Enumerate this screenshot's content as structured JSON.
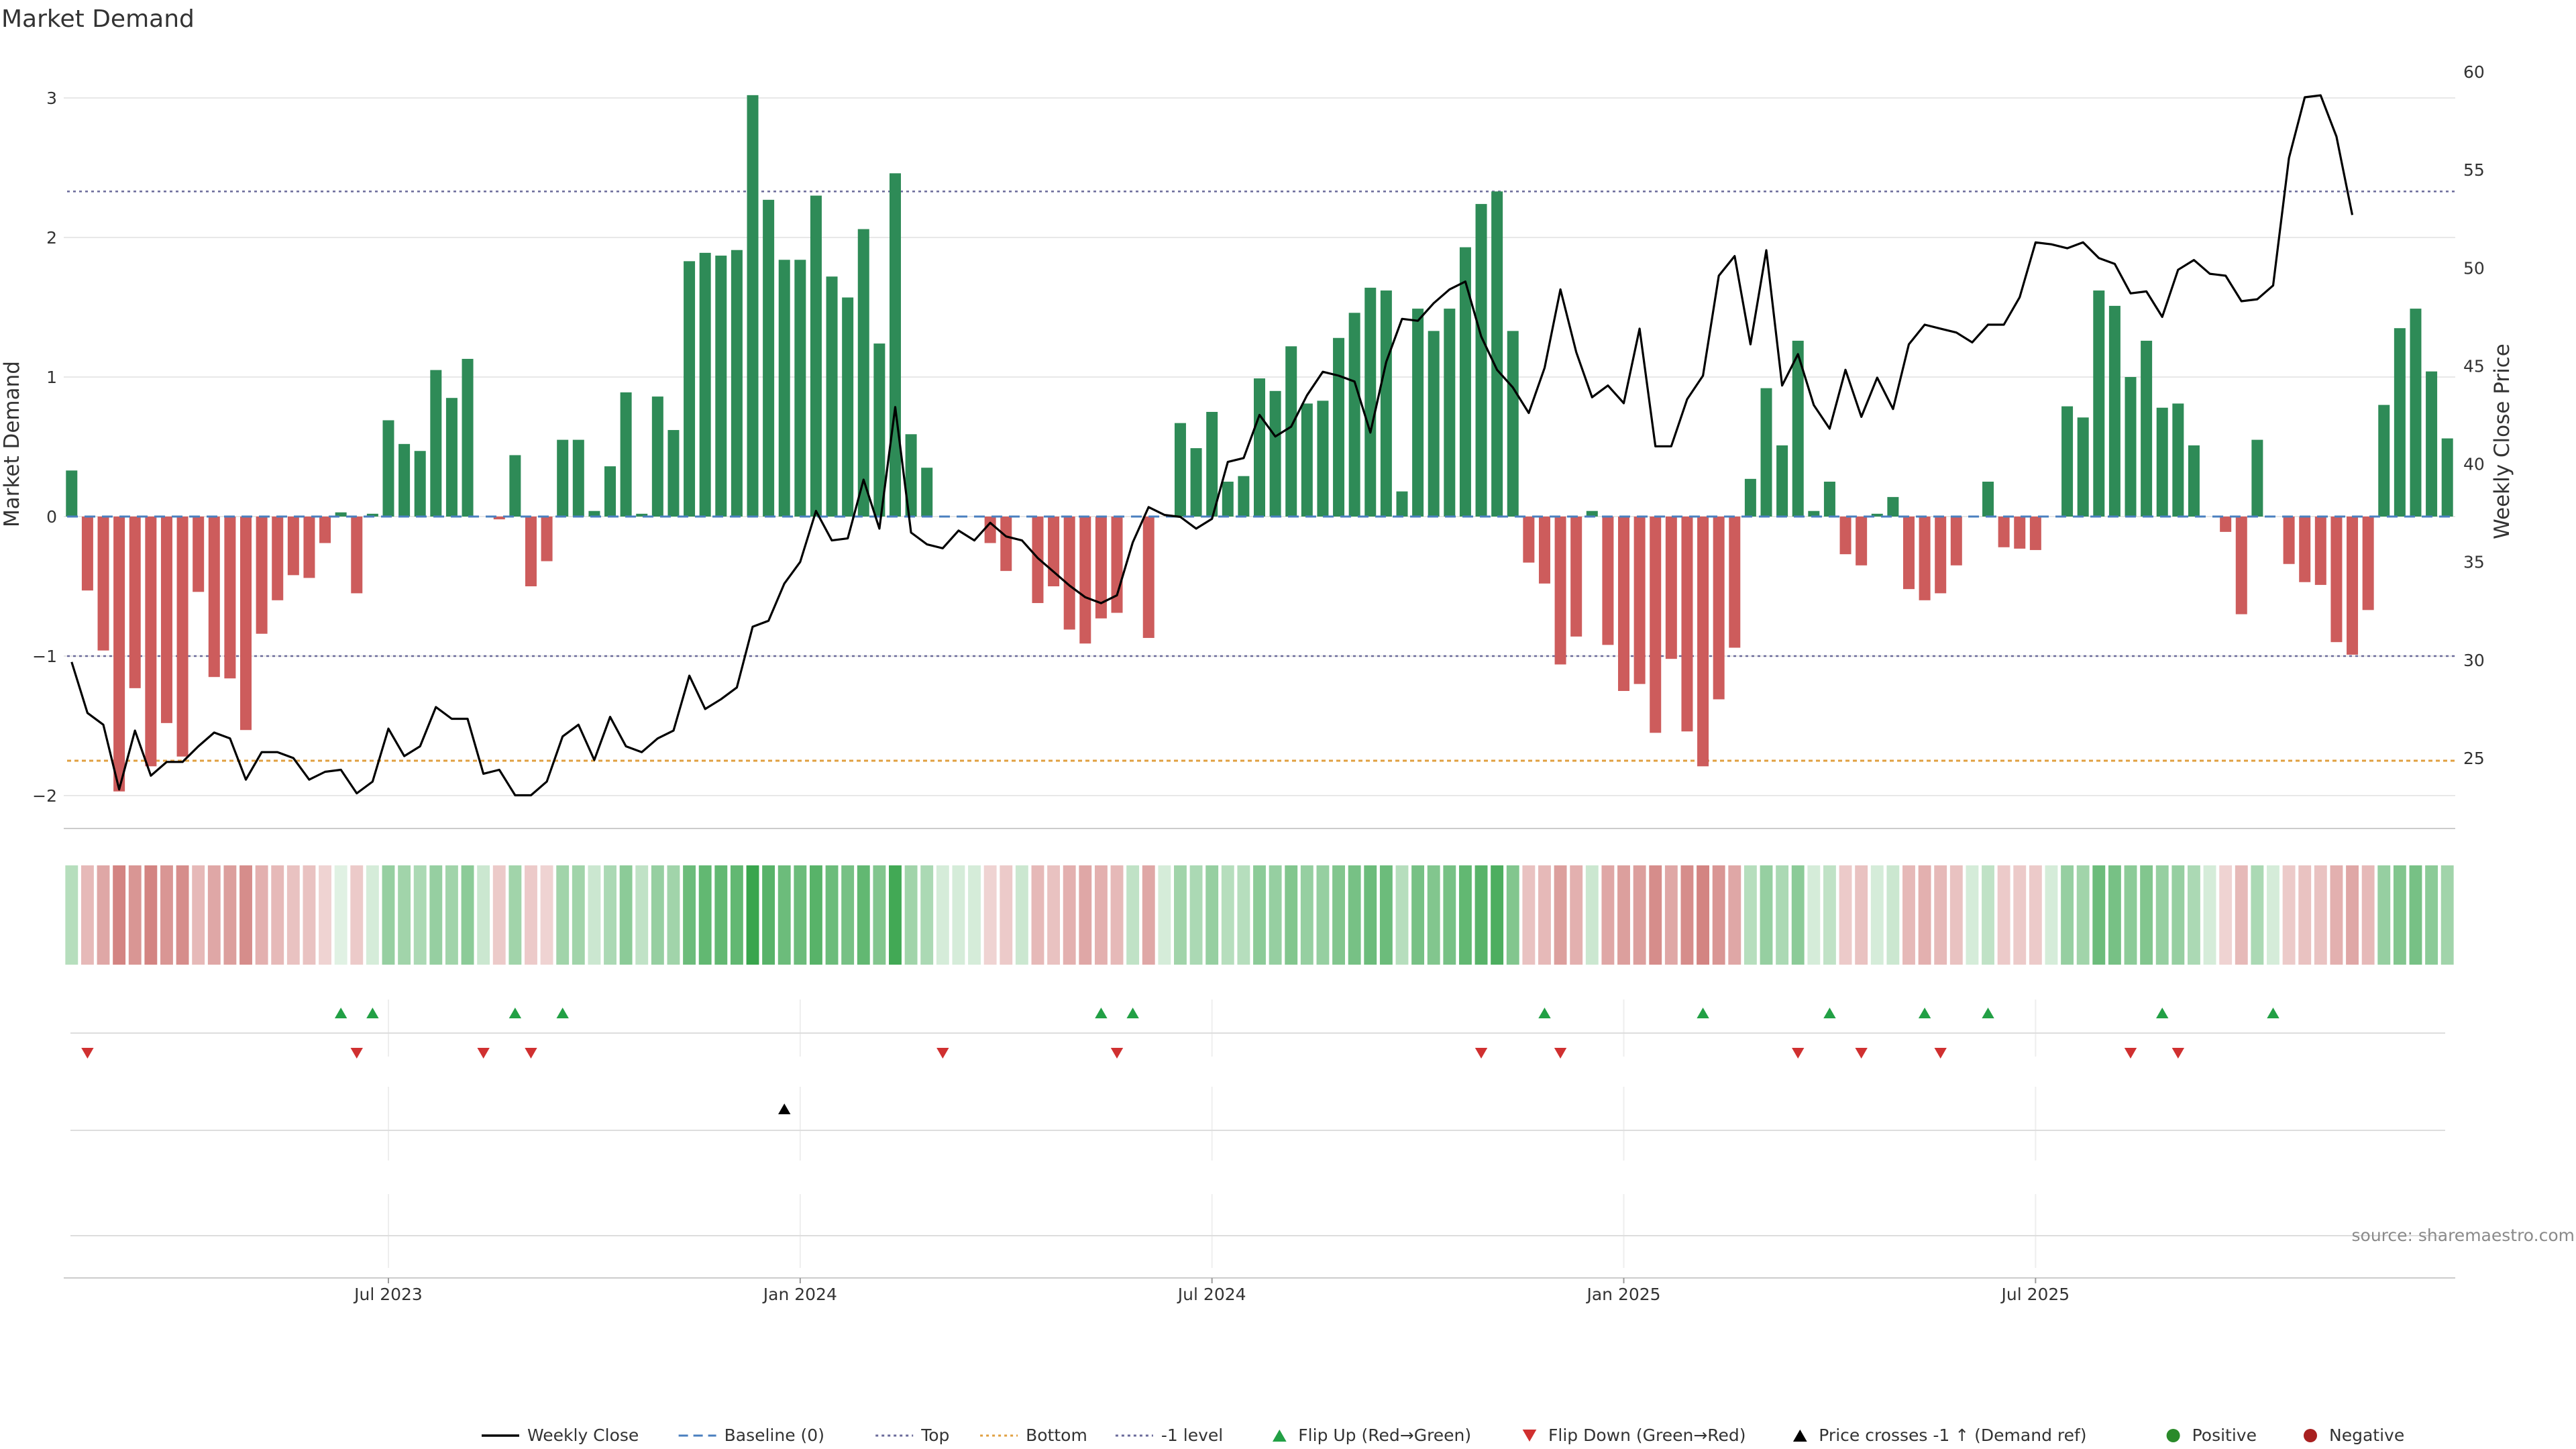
{
  "chart_data": {
    "type": "bar",
    "title": "Market Demand",
    "ylabel_left": "Market Demand",
    "ylabel_right": "Weekly Close Price",
    "ylim_left": [
      -2.2,
      3.1
    ],
    "ylim_right": [
      22,
      61
    ],
    "y_ticks_left": [
      -2,
      -1,
      0,
      1,
      2,
      3
    ],
    "y_ticks_right": [
      25,
      30,
      35,
      40,
      45,
      50,
      55,
      60
    ],
    "x_tick_labels": [
      "Jul 2023",
      "Jan 2024",
      "Jul 2024",
      "Jan 2025",
      "Jul 2025"
    ],
    "x_tick_weeks": [
      20,
      46,
      72,
      98,
      124
    ],
    "reference_lines": {
      "baseline": 0,
      "top": 2.33,
      "minus_one_level": -1,
      "bottom": -1.75
    },
    "demand": [
      0.33,
      -0.53,
      -0.96,
      -1.97,
      -1.23,
      -1.79,
      -1.48,
      -1.72,
      -0.54,
      -1.15,
      -1.16,
      -1.53,
      -0.84,
      -0.6,
      -0.42,
      -0.44,
      -0.19,
      0.03,
      -0.55,
      0.02,
      0.69,
      0.52,
      0.47,
      1.05,
      0.85,
      1.13,
      0.0,
      -0.02,
      0.44,
      -0.5,
      -0.32,
      0.55,
      0.55,
      0.04,
      0.36,
      0.89,
      0.02,
      0.86,
      0.62,
      1.83,
      1.89,
      1.87,
      1.91,
      3.02,
      2.27,
      1.84,
      1.84,
      2.3,
      1.72,
      1.57,
      2.06,
      1.24,
      2.46,
      0.59,
      0.35,
      0.0,
      0.0,
      0.0,
      -0.19,
      -0.39,
      0.0,
      -0.62,
      -0.5,
      -0.81,
      -0.91,
      -0.73,
      -0.69,
      0.0,
      -0.87,
      0.0,
      0.67,
      0.49,
      0.75,
      0.25,
      0.29,
      0.99,
      0.9,
      1.22,
      0.81,
      0.83,
      1.28,
      1.46,
      1.64,
      1.62,
      0.18,
      1.49,
      1.33,
      1.49,
      1.93,
      2.24,
      2.33,
      1.33,
      -0.33,
      -0.48,
      -1.06,
      -0.86,
      0.04,
      -0.92,
      -1.25,
      -1.2,
      -1.55,
      -1.02,
      -1.54,
      -1.79,
      -1.31,
      -0.94,
      0.27,
      0.92,
      0.51,
      1.26,
      0.04,
      0.25,
      -0.27,
      -0.35,
      0.02,
      0.14,
      -0.52,
      -0.6,
      -0.55,
      -0.35,
      0.0,
      0.25,
      -0.22,
      -0.23,
      -0.24,
      0.0,
      0.79,
      0.71,
      1.62,
      1.51,
      1.0,
      1.26,
      0.78,
      0.81,
      0.51,
      0.0,
      -0.11,
      -0.7,
      0.55,
      0.0,
      -0.34,
      -0.47,
      -0.49,
      -0.9,
      -0.99,
      -0.67,
      0.8,
      1.35,
      1.49,
      1.04,
      0.56
    ],
    "weekly_close": [
      29.9,
      27.3,
      26.7,
      23.4,
      26.4,
      24.1,
      24.8,
      24.8,
      25.6,
      26.3,
      26.0,
      23.9,
      25.3,
      25.3,
      25.0,
      23.9,
      24.3,
      24.4,
      23.2,
      23.8,
      26.5,
      25.1,
      25.6,
      27.6,
      27.0,
      27.0,
      24.2,
      24.4,
      23.1,
      23.1,
      23.8,
      26.1,
      26.7,
      24.9,
      27.1,
      25.6,
      25.3,
      26.0,
      26.4,
      29.2,
      27.5,
      28.0,
      28.6,
      31.7,
      32.0,
      33.9,
      35.0,
      37.6,
      36.1,
      36.2,
      39.2,
      36.7,
      42.9,
      36.5,
      35.9,
      35.7,
      36.6,
      36.1,
      37.0,
      36.3,
      36.1,
      35.2,
      34.5,
      33.8,
      33.2,
      32.9,
      33.3,
      36.0,
      37.8,
      37.4,
      37.3,
      36.7,
      37.2,
      40.1,
      40.3,
      42.5,
      41.4,
      41.9,
      43.5,
      44.7,
      44.5,
      44.2,
      41.6,
      45.2,
      47.4,
      47.3,
      48.2,
      48.9,
      49.3,
      46.5,
      44.8,
      43.9,
      42.6,
      44.9,
      48.9,
      45.7,
      43.4,
      44.0,
      43.1,
      46.9,
      40.9,
      40.9,
      43.3,
      44.5,
      49.6,
      50.6,
      46.1,
      50.9,
      44.0,
      45.6,
      43.0,
      41.8,
      44.8,
      42.4,
      44.4,
      42.8,
      46.1,
      47.1,
      46.9,
      46.7,
      46.2,
      47.1,
      47.1,
      48.5,
      51.3,
      51.2,
      51.0,
      51.3,
      50.5,
      50.2,
      48.7,
      48.8,
      47.5,
      49.9,
      50.4,
      49.7,
      49.6,
      48.3,
      48.4,
      49.1,
      55.6,
      58.7,
      58.8,
      56.7,
      52.7
    ],
    "strip_intensity": [
      0.35,
      0.4,
      0.5,
      0.7,
      0.6,
      0.7,
      0.6,
      0.65,
      0.4,
      0.5,
      0.55,
      0.65,
      0.45,
      0.4,
      0.35,
      0.35,
      0.25,
      0.15,
      0.3,
      0.2,
      0.5,
      0.45,
      0.4,
      0.5,
      0.45,
      0.55,
      0.25,
      0.3,
      0.45,
      0.3,
      0.25,
      0.45,
      0.45,
      0.25,
      0.4,
      0.55,
      0.3,
      0.5,
      0.45,
      0.7,
      0.75,
      0.75,
      0.75,
      0.95,
      0.8,
      0.7,
      0.7,
      0.8,
      0.7,
      0.65,
      0.75,
      0.6,
      0.9,
      0.45,
      0.4,
      0.2,
      0.2,
      0.2,
      0.25,
      0.3,
      0.25,
      0.4,
      0.35,
      0.45,
      0.5,
      0.45,
      0.4,
      0.3,
      0.5,
      0.2,
      0.45,
      0.4,
      0.5,
      0.35,
      0.35,
      0.55,
      0.5,
      0.6,
      0.5,
      0.5,
      0.6,
      0.65,
      0.7,
      0.7,
      0.35,
      0.65,
      0.6,
      0.65,
      0.75,
      0.8,
      0.85,
      0.6,
      0.35,
      0.4,
      0.55,
      0.45,
      0.25,
      0.5,
      0.55,
      0.55,
      0.65,
      0.5,
      0.65,
      0.7,
      0.6,
      0.5,
      0.35,
      0.5,
      0.4,
      0.55,
      0.2,
      0.3,
      0.3,
      0.35,
      0.2,
      0.25,
      0.4,
      0.45,
      0.4,
      0.35,
      0.2,
      0.3,
      0.3,
      0.3,
      0.3,
      0.2,
      0.5,
      0.45,
      0.7,
      0.65,
      0.55,
      0.6,
      0.5,
      0.5,
      0.4,
      0.2,
      0.25,
      0.4,
      0.4,
      0.2,
      0.3,
      0.35,
      0.35,
      0.45,
      0.5,
      0.4,
      0.5,
      0.6,
      0.65,
      0.55,
      0.45
    ],
    "flip_up_weeks": [
      17,
      19,
      28,
      31,
      65,
      67,
      93,
      103,
      111,
      117,
      121,
      132,
      139
    ],
    "flip_down_weeks": [
      1,
      18,
      26,
      29,
      55,
      66,
      89,
      94,
      109,
      113,
      118,
      130,
      133
    ],
    "price_cross_weeks": [
      45
    ],
    "legend": [
      "Weekly Close",
      "Baseline (0)",
      "Top",
      "Bottom",
      "-1 level",
      "Flip Up (Red→Green)",
      "Flip Down (Green→Red)",
      "Price crosses -1 ↑ (Demand ref)",
      "Positive",
      "Negative"
    ],
    "legend_placement": "bottom-center",
    "source": "source: sharemaestro.com",
    "colors": {
      "positive": "#2e8b57",
      "negative": "#cd5c5c",
      "price_line": "#000000",
      "baseline": "#4a7fbf",
      "top": "#6a6a9a",
      "bottom": "#e0a040",
      "minus_one": "#6a6a9a",
      "flip_up": "#22a045",
      "flip_down": "#d03030",
      "price_cross": "#000000",
      "positive_dot": "#2a8a2a",
      "negative_dot": "#a82020",
      "strip_green": "#2ea043",
      "strip_red": "#c0504d",
      "grid": "#e8e8e8"
    }
  }
}
